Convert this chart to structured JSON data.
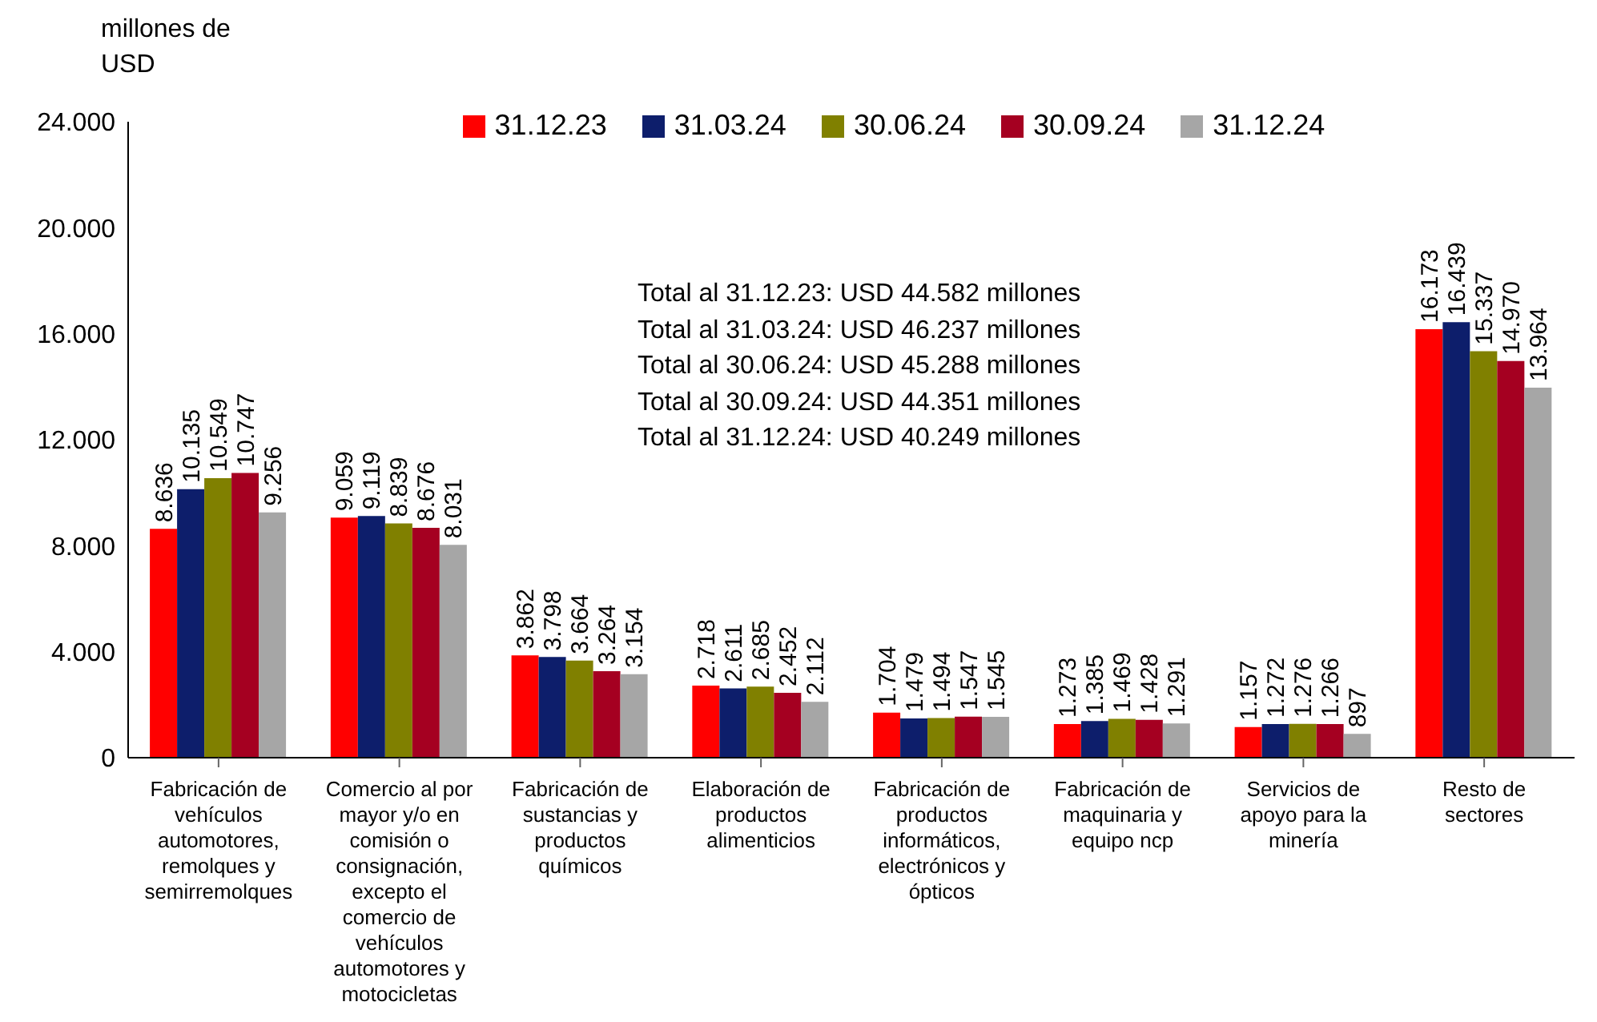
{
  "chart_data": {
    "type": "bar",
    "ylabel": "millones de USD",
    "categories": [
      "Fabricación de vehículos automotores, remolques y semirremolques",
      "Comercio al por mayor y/o en comisión o consignación, excepto el comercio de vehículos automotores y motocicletas",
      "Fabricación de sustancias y productos químicos",
      "Elaboración de productos alimenticios",
      "Fabricación de productos informáticos, electrónicos y ópticos",
      "Fabricación de maquinaria y equipo ncp",
      "Servicios de apoyo para la minería",
      "Resto de sectores"
    ],
    "series": [
      {
        "name": "31.12.23",
        "color": "#ff0000",
        "values": [
          8636,
          9059,
          3862,
          2718,
          1704,
          1273,
          1157,
          16173
        ],
        "value_labels": [
          "8.636",
          "9.059",
          "3.862",
          "2.718",
          "1.704",
          "1.273",
          "1.157",
          "16.173"
        ]
      },
      {
        "name": "31.03.24",
        "color": "#0d1e6b",
        "values": [
          10135,
          9119,
          3798,
          2611,
          1479,
          1385,
          1272,
          16439
        ],
        "value_labels": [
          "10.135",
          "9.119",
          "3.798",
          "2.611",
          "1.479",
          "1.385",
          "1.272",
          "16.439"
        ]
      },
      {
        "name": "30.06.24",
        "color": "#808000",
        "values": [
          10549,
          8839,
          3664,
          2685,
          1494,
          1469,
          1276,
          15337
        ],
        "value_labels": [
          "10.549",
          "8.839",
          "3.664",
          "2.685",
          "1.494",
          "1.469",
          "1.276",
          "15.337"
        ]
      },
      {
        "name": "30.09.24",
        "color": "#a50021",
        "values": [
          10747,
          8676,
          3264,
          2452,
          1547,
          1428,
          1266,
          14970
        ],
        "value_labels": [
          "10.747",
          "8.676",
          "3.264",
          "2.452",
          "1.547",
          "1.428",
          "1.266",
          "14.970"
        ]
      },
      {
        "name": "31.12.24",
        "color": "#a6a6a6",
        "values": [
          9256,
          8031,
          3154,
          2112,
          1545,
          1291,
          897,
          13964
        ],
        "value_labels": [
          "9.256",
          "8.031",
          "3.154",
          "2.112",
          "1.545",
          "1.291",
          "897",
          "13.964"
        ]
      }
    ],
    "ylim": [
      0,
      24000
    ],
    "yticks": [
      {
        "value": 0,
        "label": "0"
      },
      {
        "value": 4000,
        "label": "4.000"
      },
      {
        "value": 8000,
        "label": "8.000"
      },
      {
        "value": 12000,
        "label": "12.000"
      },
      {
        "value": 16000,
        "label": "16.000"
      },
      {
        "value": 20000,
        "label": "20.000"
      },
      {
        "value": 24000,
        "label": "24.000"
      }
    ],
    "annotations": [
      "Total al 31.12.23: USD 44.582 millones",
      "Total al 31.03.24: USD 46.237 millones",
      "Total al 30.06.24: USD 45.288 millones",
      "Total al 30.09.24: USD 44.351 millones",
      "Total al 31.12.24: USD 40.249 millones"
    ],
    "legend": "top",
    "grid": false
  }
}
